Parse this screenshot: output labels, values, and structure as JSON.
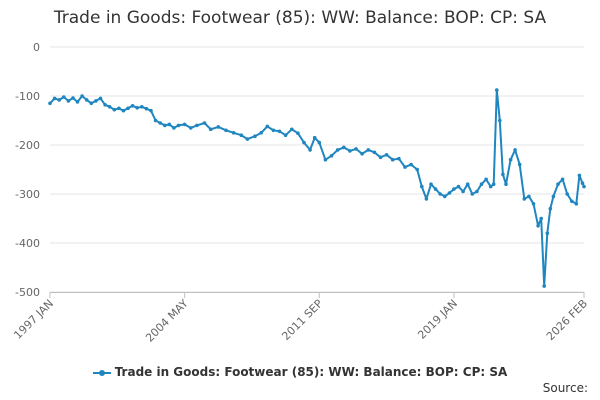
{
  "chart_data": {
    "type": "line",
    "title": "Trade in Goods: Footwear (85): WW: Balance: BOP: CP: SA",
    "xlabel": "",
    "ylabel": "",
    "ylim": [
      -500,
      0
    ],
    "yticks": [
      0,
      -100,
      -200,
      -300,
      -400,
      -500
    ],
    "x_range": [
      "1997-01",
      "2026-02"
    ],
    "xticks": [
      {
        "date": "1997-01",
        "label": "1997 JAN"
      },
      {
        "date": "2004-05",
        "label": "2004 MAY"
      },
      {
        "date": "2011-09",
        "label": "2011 SEP"
      },
      {
        "date": "2019-01",
        "label": "2019 JAN"
      },
      {
        "date": "2026-02",
        "label": "2026 FEB"
      }
    ],
    "grid": true,
    "legend_position": "bottom",
    "colors": {
      "series": "#1f86c0",
      "grid": "#e6e6e6"
    },
    "series": [
      {
        "name": "Trade in Goods: Footwear (85): WW: Balance: BOP: CP: SA",
        "points": [
          [
            "1997-01",
            -115
          ],
          [
            "1997-04",
            -105
          ],
          [
            "1997-07",
            -108
          ],
          [
            "1997-10",
            -102
          ],
          [
            "1998-01",
            -110
          ],
          [
            "1998-04",
            -104
          ],
          [
            "1998-07",
            -112
          ],
          [
            "1998-10",
            -100
          ],
          [
            "1999-01",
            -108
          ],
          [
            "1999-04",
            -115
          ],
          [
            "1999-07",
            -110
          ],
          [
            "1999-10",
            -105
          ],
          [
            "2000-01",
            -118
          ],
          [
            "2000-04",
            -122
          ],
          [
            "2000-07",
            -128
          ],
          [
            "2000-10",
            -125
          ],
          [
            "2001-01",
            -130
          ],
          [
            "2001-04",
            -125
          ],
          [
            "2001-07",
            -120
          ],
          [
            "2001-10",
            -124
          ],
          [
            "2002-01",
            -122
          ],
          [
            "2002-04",
            -126
          ],
          [
            "2002-07",
            -130
          ],
          [
            "2002-10",
            -150
          ],
          [
            "2003-01",
            -155
          ],
          [
            "2003-04",
            -160
          ],
          [
            "2003-07",
            -158
          ],
          [
            "2003-10",
            -165
          ],
          [
            "2004-01",
            -160
          ],
          [
            "2004-05",
            -158
          ],
          [
            "2004-09",
            -165
          ],
          [
            "2005-01",
            -160
          ],
          [
            "2005-06",
            -155
          ],
          [
            "2005-10",
            -168
          ],
          [
            "2006-03",
            -163
          ],
          [
            "2006-08",
            -170
          ],
          [
            "2007-01",
            -175
          ],
          [
            "2007-06",
            -180
          ],
          [
            "2007-10",
            -188
          ],
          [
            "2008-03",
            -182
          ],
          [
            "2008-07",
            -175
          ],
          [
            "2008-11",
            -162
          ],
          [
            "2009-03",
            -170
          ],
          [
            "2009-07",
            -172
          ],
          [
            "2009-11",
            -180
          ],
          [
            "2010-03",
            -168
          ],
          [
            "2010-07",
            -176
          ],
          [
            "2010-11",
            -195
          ],
          [
            "2011-03",
            -210
          ],
          [
            "2011-06",
            -185
          ],
          [
            "2011-09",
            -195
          ],
          [
            "2012-01",
            -230
          ],
          [
            "2012-05",
            -222
          ],
          [
            "2012-09",
            -210
          ],
          [
            "2013-01",
            -205
          ],
          [
            "2013-05",
            -212
          ],
          [
            "2013-09",
            -208
          ],
          [
            "2014-01",
            -218
          ],
          [
            "2014-05",
            -210
          ],
          [
            "2014-09",
            -215
          ],
          [
            "2015-01",
            -225
          ],
          [
            "2015-05",
            -220
          ],
          [
            "2015-09",
            -230
          ],
          [
            "2016-01",
            -228
          ],
          [
            "2016-05",
            -245
          ],
          [
            "2016-09",
            -240
          ],
          [
            "2017-01",
            -250
          ],
          [
            "2017-04",
            -285
          ],
          [
            "2017-07",
            -310
          ],
          [
            "2017-10",
            -280
          ],
          [
            "2018-01",
            -290
          ],
          [
            "2018-04",
            -300
          ],
          [
            "2018-07",
            -305
          ],
          [
            "2018-10",
            -298
          ],
          [
            "2019-01",
            -290
          ],
          [
            "2019-04",
            -285
          ],
          [
            "2019-07",
            -295
          ],
          [
            "2019-10",
            -280
          ],
          [
            "2020-01",
            -300
          ],
          [
            "2020-04",
            -295
          ],
          [
            "2020-07",
            -280
          ],
          [
            "2020-10",
            -270
          ],
          [
            "2021-01",
            -285
          ],
          [
            "2021-03",
            -280
          ],
          [
            "2021-05",
            -88
          ],
          [
            "2021-07",
            -150
          ],
          [
            "2021-09",
            -260
          ],
          [
            "2021-11",
            -280
          ],
          [
            "2022-02",
            -230
          ],
          [
            "2022-05",
            -210
          ],
          [
            "2022-08",
            -240
          ],
          [
            "2022-11",
            -310
          ],
          [
            "2023-02",
            -305
          ],
          [
            "2023-05",
            -320
          ],
          [
            "2023-08",
            -365
          ],
          [
            "2023-10",
            -350
          ],
          [
            "2023-12",
            -488
          ],
          [
            "2024-02",
            -380
          ],
          [
            "2024-04",
            -330
          ],
          [
            "2024-06",
            -305
          ],
          [
            "2024-09",
            -280
          ],
          [
            "2024-12",
            -270
          ],
          [
            "2025-03",
            -300
          ],
          [
            "2025-06",
            -315
          ],
          [
            "2025-09",
            -320
          ],
          [
            "2025-11",
            -262
          ],
          [
            "2026-01",
            -278
          ],
          [
            "2026-02",
            -285
          ]
        ]
      }
    ],
    "source_label": "Source:"
  }
}
